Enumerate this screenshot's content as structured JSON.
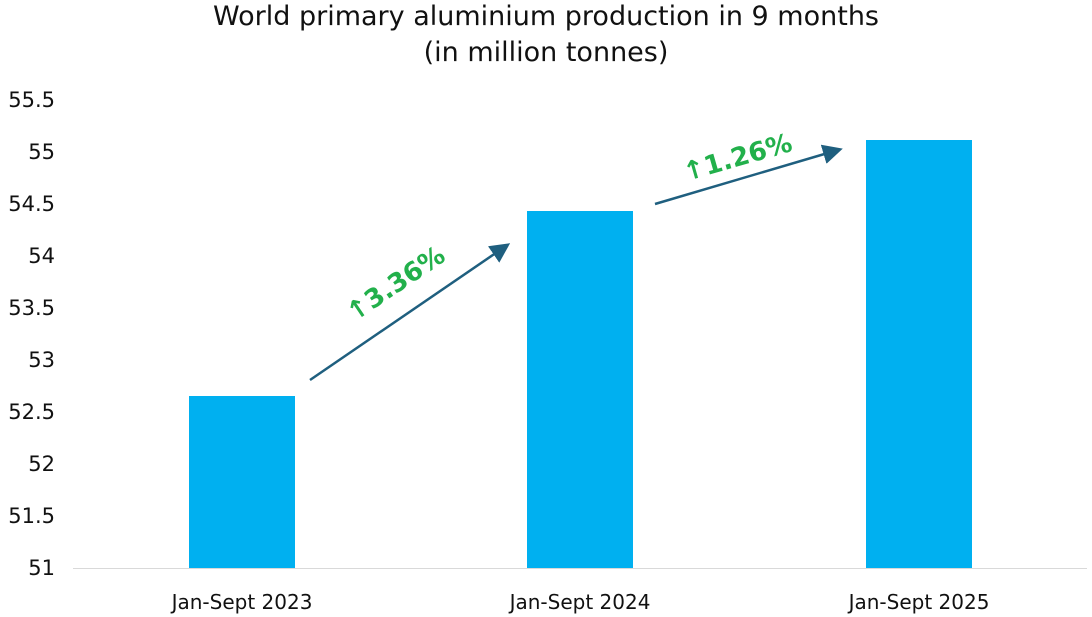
{
  "chart_data": {
    "type": "bar",
    "title": "World primary aluminium production in 9 months",
    "subtitle": "(in million tonnes)",
    "categories": [
      "Jan-Sept 2023",
      "Jan-Sept 2024",
      "Jan-Sept 2025"
    ],
    "values": [
      52.65,
      54.43,
      55.12
    ],
    "xlabel": "",
    "ylabel": "",
    "ylim": [
      51,
      55.5
    ],
    "yticks": [
      "55.5",
      "55",
      "54.5",
      "54",
      "53.5",
      "53",
      "52.5",
      "52",
      "51.5",
      "51"
    ],
    "grid": false,
    "legend": null,
    "bar_color": "#00b0f0",
    "annotations": [
      {
        "text": "↑3.36%",
        "from": "Jan-Sept 2023",
        "to": "Jan-Sept 2024",
        "color": "#22b04b",
        "arrow_color": "#1f5f7f"
      },
      {
        "text": "↑1.26%",
        "from": "Jan-Sept 2024",
        "to": "Jan-Sept 2025",
        "color": "#22b04b",
        "arrow_color": "#1f5f7f"
      }
    ]
  }
}
